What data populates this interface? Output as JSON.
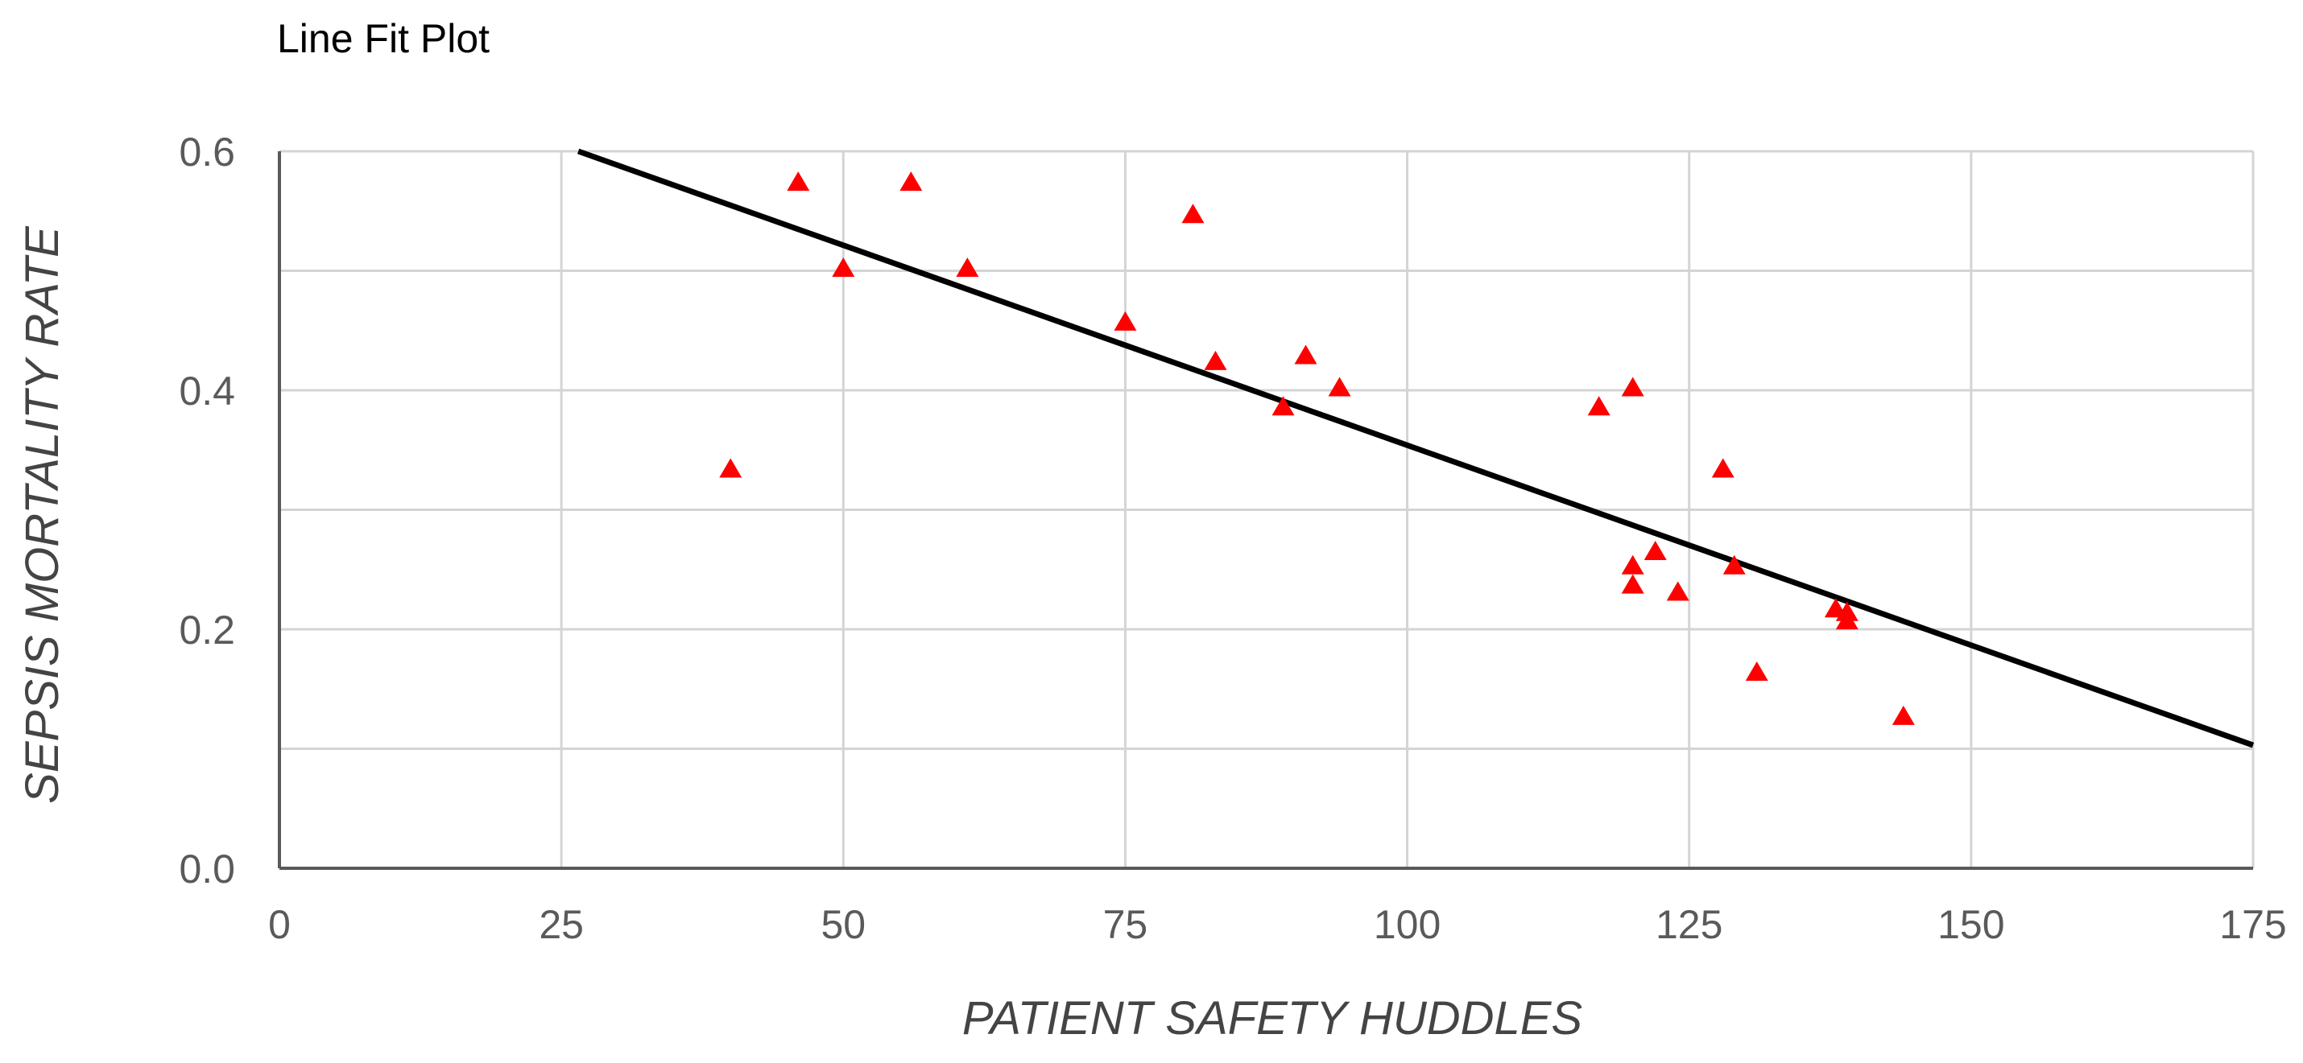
{
  "chart_data": {
    "type": "scatter",
    "title": "Line Fit Plot",
    "xlabel": "PATIENT SAFETY HUDDLES",
    "ylabel": "SEPSIS MORTALITY RATE",
    "xlim": [
      0,
      175
    ],
    "ylim": [
      0,
      0.6
    ],
    "x_ticks": [
      0,
      25,
      50,
      75,
      100,
      125,
      150,
      175
    ],
    "x_tick_labels": [
      "0",
      "25",
      "50",
      "75",
      "100",
      "125",
      "150",
      "175"
    ],
    "y_ticks": [
      0,
      0.2,
      0.4,
      0.6
    ],
    "y_tick_labels": [
      "0.0",
      "0.2",
      "0.4",
      "0.6"
    ],
    "grid": true,
    "legend": "none",
    "series": [
      {
        "marker": "triangle",
        "color": "#ff0000",
        "points": [
          {
            "x": 40,
            "y": 0.335
          },
          {
            "x": 46,
            "y": 0.575
          },
          {
            "x": 50,
            "y": 0.503
          },
          {
            "x": 56,
            "y": 0.575
          },
          {
            "x": 61,
            "y": 0.503
          },
          {
            "x": 75,
            "y": 0.458
          },
          {
            "x": 81,
            "y": 0.548
          },
          {
            "x": 83,
            "y": 0.425
          },
          {
            "x": 89,
            "y": 0.387
          },
          {
            "x": 91,
            "y": 0.43
          },
          {
            "x": 94,
            "y": 0.403
          },
          {
            "x": 117,
            "y": 0.387
          },
          {
            "x": 120,
            "y": 0.403
          },
          {
            "x": 120,
            "y": 0.254
          },
          {
            "x": 120,
            "y": 0.238
          },
          {
            "x": 122,
            "y": 0.266
          },
          {
            "x": 124,
            "y": 0.232
          },
          {
            "x": 128,
            "y": 0.335
          },
          {
            "x": 129,
            "y": 0.254
          },
          {
            "x": 131,
            "y": 0.165
          },
          {
            "x": 138,
            "y": 0.218
          },
          {
            "x": 139,
            "y": 0.208
          },
          {
            "x": 139,
            "y": 0.215
          },
          {
            "x": 144,
            "y": 0.128
          }
        ]
      }
    ],
    "fit_line": {
      "color": "#000000",
      "start": {
        "x": 26.5,
        "y": 0.6
      },
      "end": {
        "x": 175,
        "y": 0.103
      }
    }
  }
}
